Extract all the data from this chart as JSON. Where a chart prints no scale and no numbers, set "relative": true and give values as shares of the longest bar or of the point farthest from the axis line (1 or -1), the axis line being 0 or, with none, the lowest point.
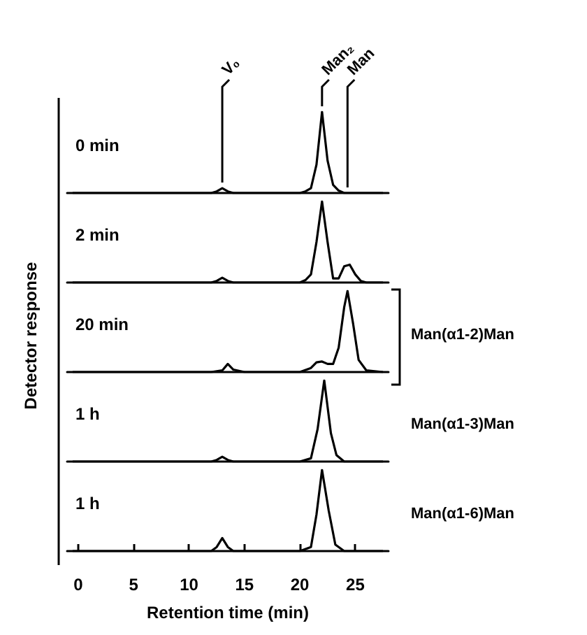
{
  "chart_data": [
    {
      "type": "line",
      "relative": true,
      "xlim": [
        -1,
        28
      ],
      "grid": false,
      "marker": "none",
      "annotations": [
        {
          "text": "V₀",
          "x": 13,
          "y": 0.06
        },
        {
          "text": "Man₂",
          "x": 22,
          "y": 1
        },
        {
          "text": "Man",
          "x": 24.3,
          "y": 0
        }
      ],
      "x": [
        -0.5,
        12,
        12.5,
        13,
        13.5,
        14,
        20,
        20.5,
        21,
        21.5,
        22,
        22.5,
        23,
        23.5,
        24,
        24.3,
        27.5
      ],
      "series": [
        {
          "name": "0 min",
          "color": "#000000",
          "values": [
            0,
            0,
            0.02,
            0.06,
            0.02,
            0,
            0,
            0.02,
            0.06,
            0.35,
            1,
            0.4,
            0.1,
            0.03,
            0,
            0,
            0
          ]
        }
      ]
    },
    {
      "type": "line",
      "relative": true,
      "xlim": [
        -1,
        28
      ],
      "grid": false,
      "marker": "none",
      "x": [
        -0.5,
        12,
        12.5,
        13,
        13.5,
        14,
        20,
        20.5,
        21,
        21.5,
        22,
        22.5,
        23,
        23.5,
        24,
        24.5,
        25,
        25.5,
        26,
        27.5
      ],
      "series": [
        {
          "name": "2 min",
          "color": "#000000",
          "values": [
            0,
            0,
            0.02,
            0.06,
            0.02,
            0,
            0,
            0.03,
            0.1,
            0.5,
            1,
            0.5,
            0.05,
            0.05,
            0.2,
            0.22,
            0.1,
            0.02,
            0,
            0
          ]
        }
      ]
    },
    {
      "type": "line",
      "relative": true,
      "xlim": [
        -1,
        28
      ],
      "grid": false,
      "marker": "none",
      "ylabel": "Detector response",
      "annotations": [
        "Man(α1-2)Man"
      ],
      "x": [
        -0.5,
        12,
        13,
        13.5,
        14,
        15,
        20,
        21,
        21.5,
        22,
        22.5,
        23,
        23.5,
        24,
        24.3,
        24.8,
        25.3,
        26,
        27.5
      ],
      "series": [
        {
          "name": "20 min",
          "color": "#000000",
          "values": [
            0,
            0,
            0.02,
            0.1,
            0.03,
            0,
            0,
            0.05,
            0.12,
            0.13,
            0.1,
            0.1,
            0.3,
            0.8,
            1,
            0.6,
            0.15,
            0.02,
            0
          ]
        }
      ]
    },
    {
      "type": "line",
      "relative": true,
      "xlim": [
        -1,
        28
      ],
      "grid": false,
      "marker": "none",
      "annotations": [
        "Man(α1-3)Man"
      ],
      "x": [
        -0.5,
        12,
        12.5,
        13,
        13.5,
        14,
        20,
        21,
        21.6,
        22.2,
        22.8,
        23.3,
        24,
        27.5
      ],
      "series": [
        {
          "name": "1 h",
          "color": "#000000",
          "values": [
            0,
            0,
            0.02,
            0.06,
            0.02,
            0,
            0,
            0.04,
            0.4,
            1,
            0.35,
            0.08,
            0,
            0
          ]
        }
      ]
    },
    {
      "type": "line",
      "relative": true,
      "xlim": [
        -1,
        28
      ],
      "xticks": [
        0,
        5,
        10,
        15,
        20,
        25
      ],
      "xlabel": "Retention time (min)",
      "grid": false,
      "marker": "none",
      "annotations": [
        "Man(α1-6)Man"
      ],
      "x": [
        -0.5,
        12,
        12.5,
        13,
        13.5,
        14,
        20,
        21,
        21.5,
        22,
        22.6,
        23.2,
        24,
        27.5
      ],
      "series": [
        {
          "name": "1 h",
          "color": "#000000",
          "values": [
            0,
            0,
            0.05,
            0.16,
            0.05,
            0,
            0,
            0.05,
            0.45,
            1,
            0.5,
            0.08,
            0,
            0
          ]
        }
      ]
    }
  ]
}
